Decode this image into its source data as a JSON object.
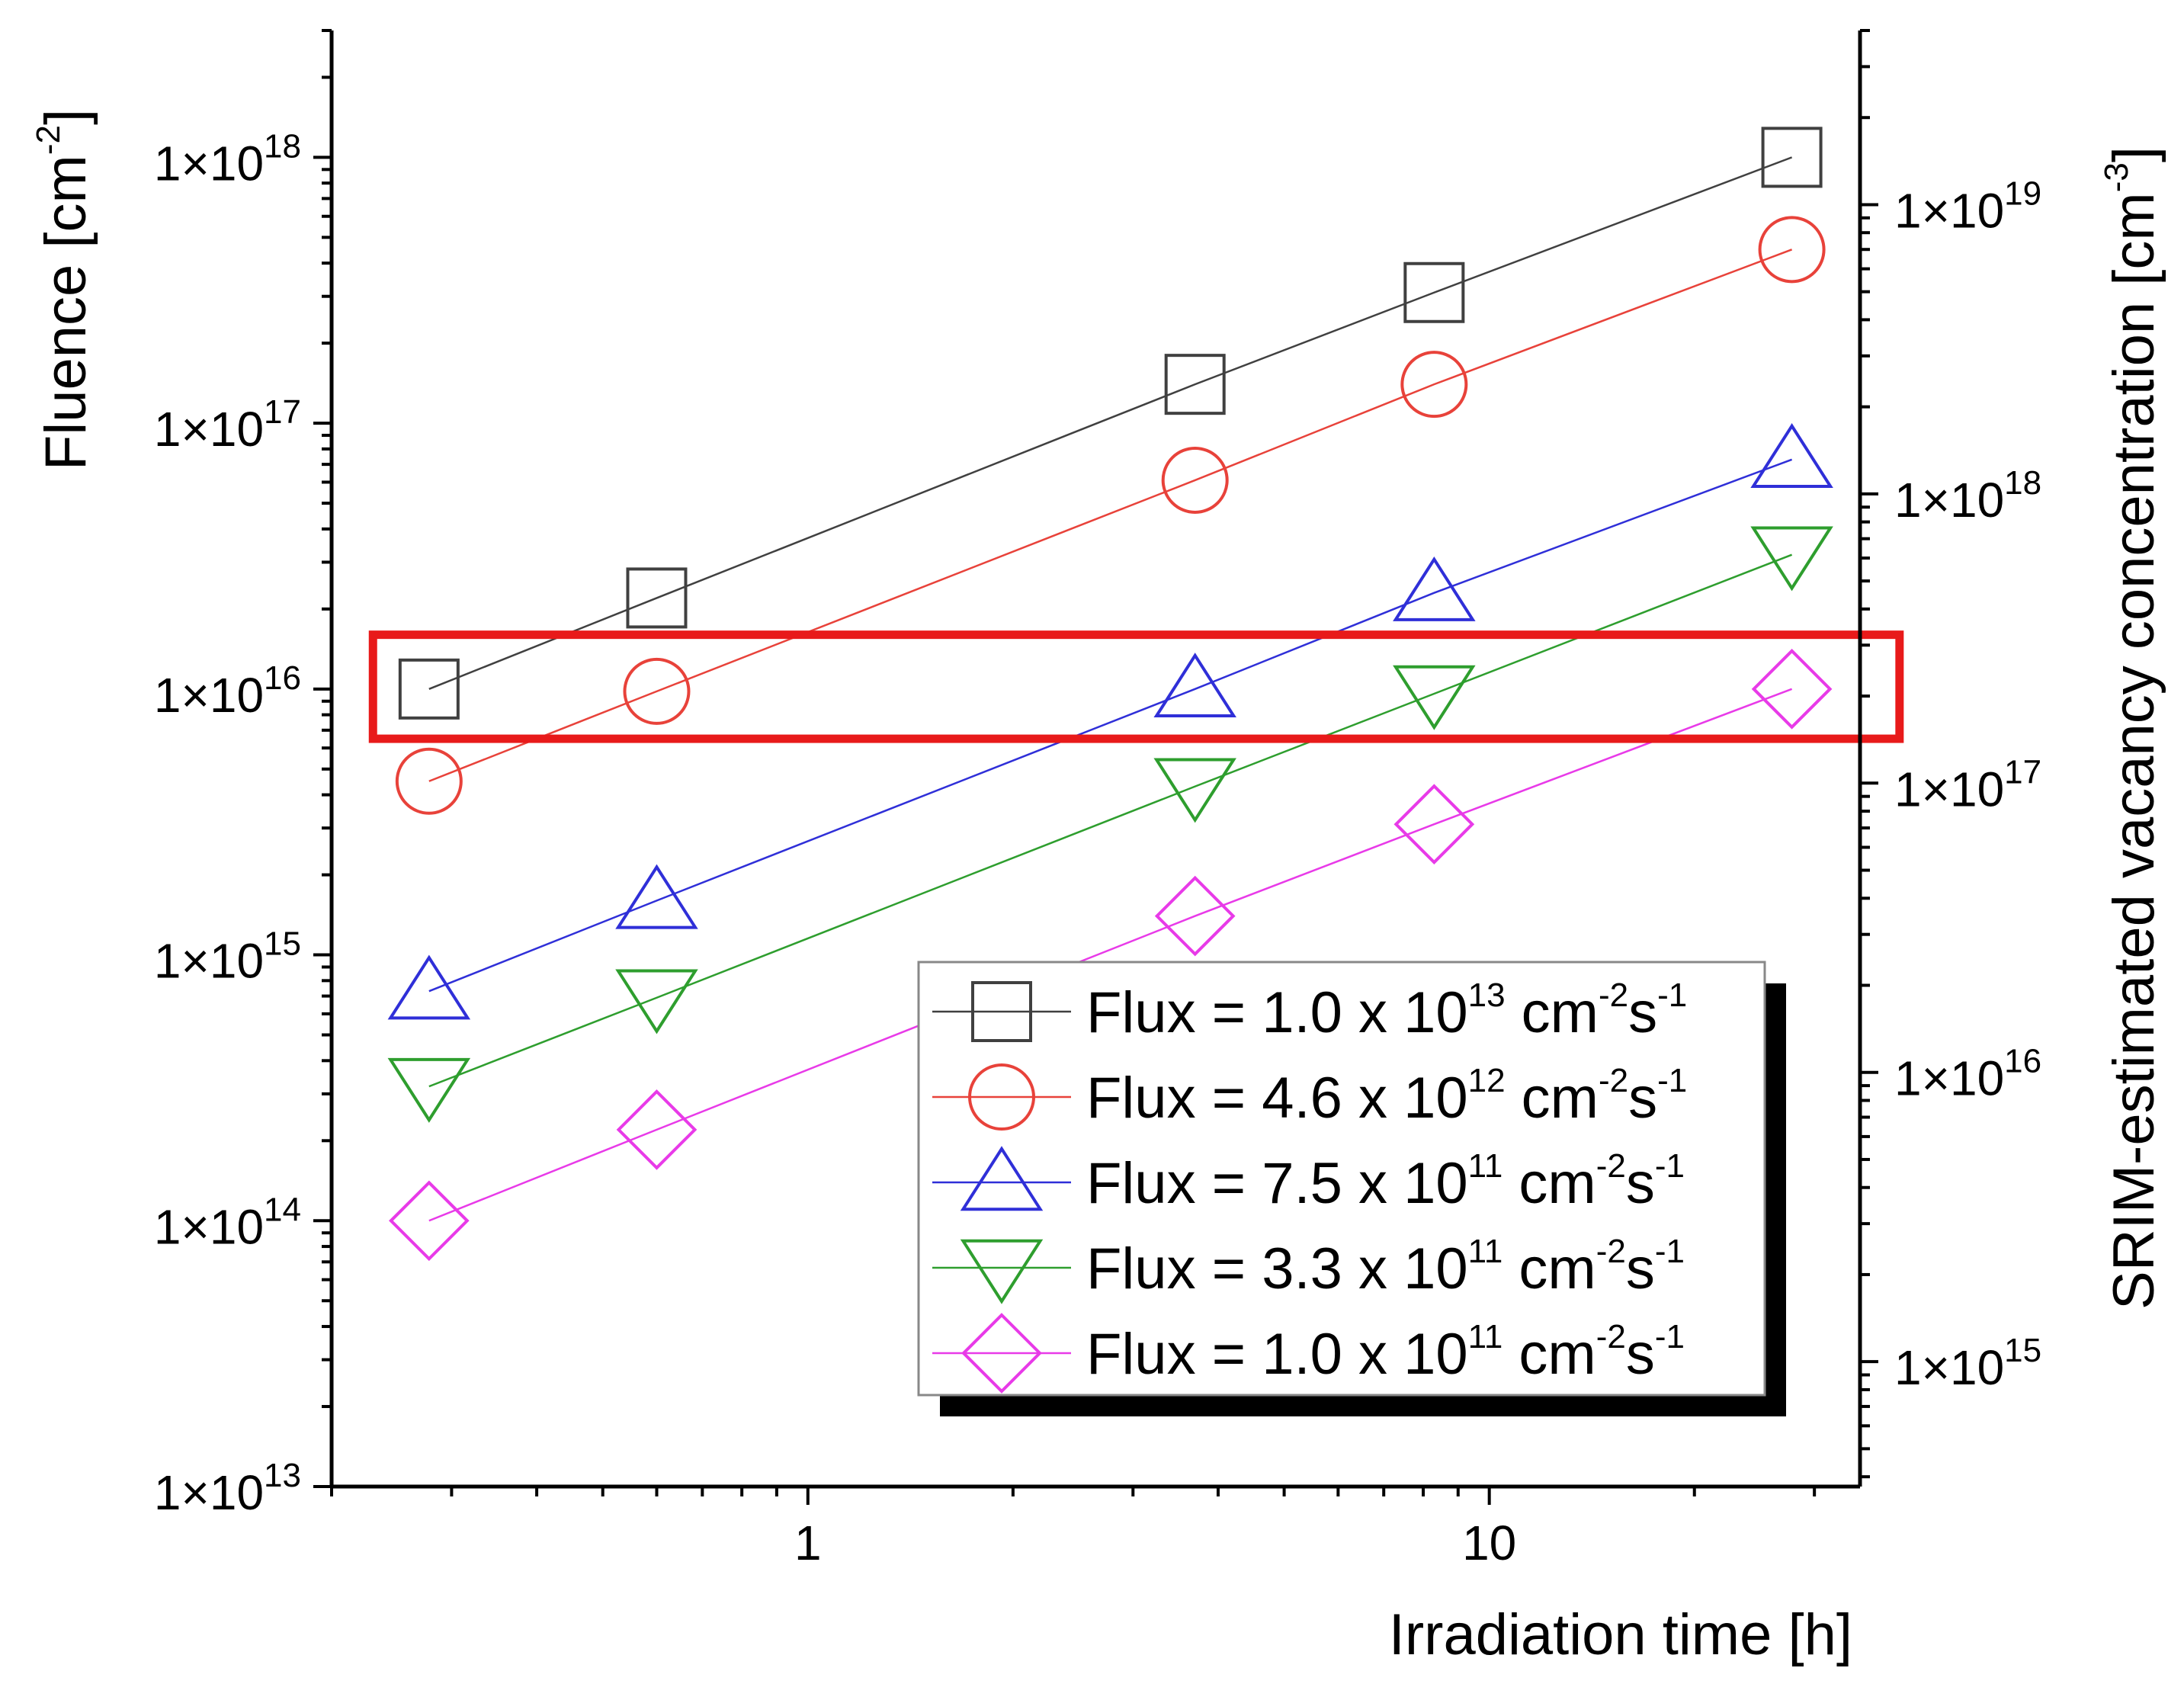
{
  "chart_data": {
    "type": "scatter",
    "x_scale": "log",
    "y_scale": "log",
    "xlabel": "Irradiation time [h]",
    "ylabel": {
      "base": "Fluence  [cm",
      "exp": "-2",
      "tail": "]"
    },
    "y2label": {
      "base": "SRIM-estimated vacancy concentration [cm",
      "exp": "-3",
      "tail": "]"
    },
    "xlim": [
      0.2,
      35
    ],
    "ylim": [
      10000000000000.0,
      3e+18
    ],
    "y2lim": [
      370000000000000.0,
      4e+19
    ],
    "x_ticks": [
      {
        "v": 1,
        "label": "1"
      },
      {
        "v": 10,
        "label": "10"
      }
    ],
    "y_ticks": [
      {
        "v": 10000000000000.0,
        "base": "1×10",
        "exp": "13"
      },
      {
        "v": 100000000000000.0,
        "base": "1×10",
        "exp": "14"
      },
      {
        "v": 1000000000000000.0,
        "base": "1×10",
        "exp": "15"
      },
      {
        "v": 1e+16,
        "base": "1×10",
        "exp": "16"
      },
      {
        "v": 1e+17,
        "base": "1×10",
        "exp": "17"
      },
      {
        "v": 1e+18,
        "base": "1×10",
        "exp": "18"
      }
    ],
    "y2_ticks": [
      {
        "v": 1000000000000000.0,
        "base": "1×10",
        "exp": "15"
      },
      {
        "v": 1e+16,
        "base": "1×10",
        "exp": "16"
      },
      {
        "v": 1e+17,
        "base": "1×10",
        "exp": "17"
      },
      {
        "v": 1e+18,
        "base": "1×10",
        "exp": "18"
      },
      {
        "v": 1e+19,
        "base": "1×10",
        "exp": "19"
      }
    ],
    "x": [
      0.278,
      0.6,
      3.7,
      8.3,
      27.8
    ],
    "series": [
      {
        "name": "Flux = 1.0 x 10^13 cm^-2s^-1",
        "label_parts": [
          "Flux = 1.0 x 10",
          "13",
          " cm",
          "-2",
          "s",
          "-1"
        ],
        "color": "#404040",
        "marker": "square",
        "values": [
          1e+16,
          2.2e+16,
          1.4e+17,
          3.1e+17,
          1e+18
        ]
      },
      {
        "name": "Flux = 4.6 x 10^12 cm^-2s^-1",
        "label_parts": [
          "Flux = 4.6 x 10",
          "12",
          " cm",
          "-2",
          "s",
          "-1"
        ],
        "color": "#e8423a",
        "marker": "circle",
        "values": [
          4500000000000000.0,
          9800000000000000.0,
          6.1e+16,
          1.4e+17,
          4.5e+17
        ]
      },
      {
        "name": "Flux = 7.5 x 10^11 cm^-2s^-1",
        "label_parts": [
          "Flux = 7.5 x 10",
          "11",
          " cm",
          "-2",
          "s",
          "-1"
        ],
        "color": "#2f2fd8",
        "marker": "triangle-up",
        "values": [
          730000000000000.0,
          1600000000000000.0,
          1e+16,
          2.3e+16,
          7.3e+16
        ]
      },
      {
        "name": "Flux = 3.3 x 10^11 cm^-2s^-1",
        "label_parts": [
          "Flux = 3.3 x 10",
          "11",
          " cm",
          "-2",
          "s",
          "-1"
        ],
        "color": "#2e9e2e",
        "marker": "triangle-down",
        "values": [
          320000000000000.0,
          690000000000000.0,
          4300000000000000.0,
          9600000000000000.0,
          3.2e+16
        ]
      },
      {
        "name": "Flux = 1.0 x 10^11 cm^-2s^-1",
        "label_parts": [
          "Flux = 1.0 x 10",
          "11",
          " cm",
          "-2",
          "s",
          "-1"
        ],
        "color": "#e83ae8",
        "marker": "diamond",
        "values": [
          100000000000000.0,
          220000000000000.0,
          1400000000000000.0,
          3100000000000000.0,
          1e+16
        ]
      }
    ],
    "highlight": {
      "color": "#e81a1a",
      "x_range": [
        0.23,
        40
      ],
      "y_range": [
        6500000000000000.0,
        1.6e+16
      ]
    },
    "legend": {
      "placement": "lower-right"
    }
  }
}
